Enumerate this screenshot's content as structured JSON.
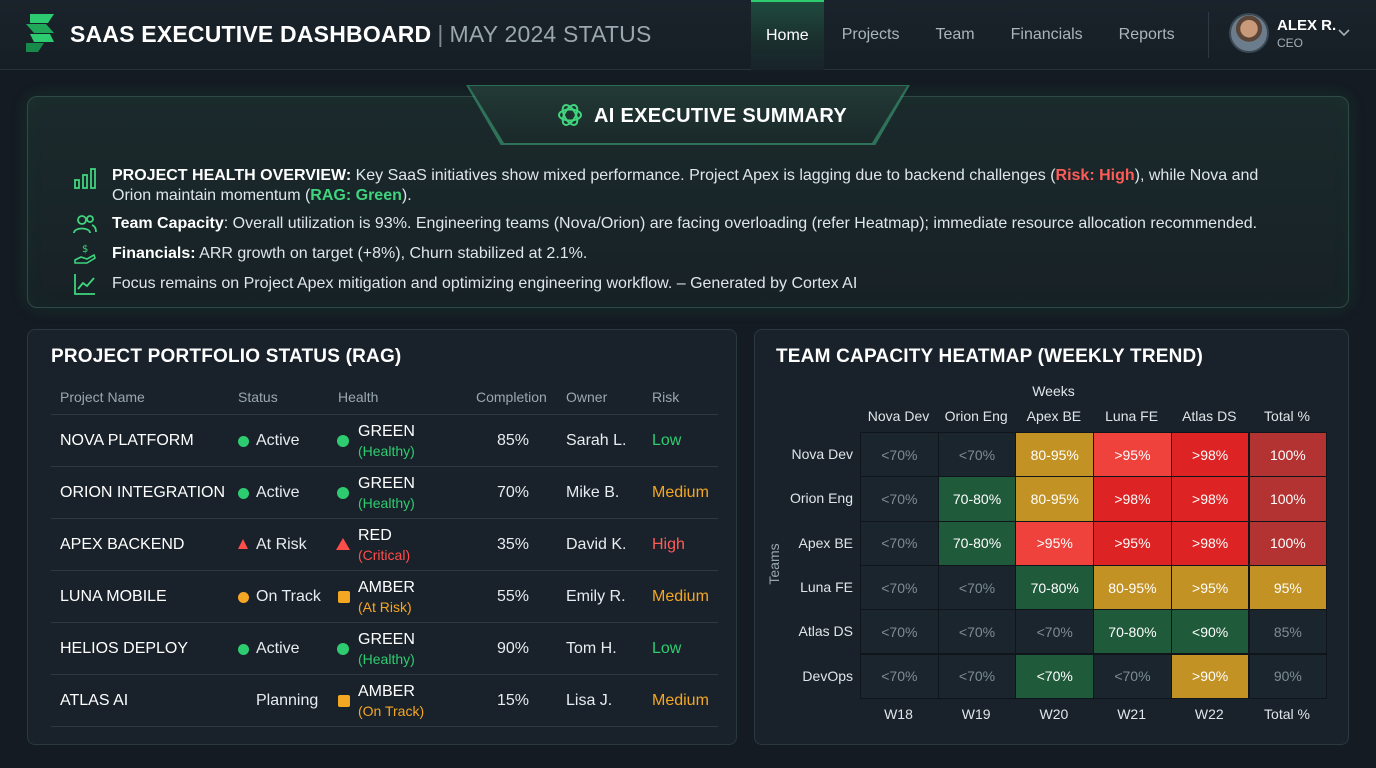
{
  "header": {
    "title_main": "SAAS EXECUTIVE DASHBOARD",
    "title_sep": "|",
    "title_sub": "MAY 2024 STATUS",
    "nav": [
      {
        "label": "Home",
        "active": true
      },
      {
        "label": "Projects",
        "active": false
      },
      {
        "label": "Team",
        "active": false
      },
      {
        "label": "Financials",
        "active": false
      },
      {
        "label": "Reports",
        "active": false
      }
    ],
    "user": {
      "name": "ALEX R.",
      "role": "CEO"
    }
  },
  "summary": {
    "title": "AI EXECUTIVE SUMMARY",
    "rows": [
      {
        "icon": "bar-chart-icon",
        "bold": "PROJECT HEALTH OVERVIEW:",
        "text1": " Key SaaS initiatives show mixed performance. Project Apex is lagging due to backend challenges (",
        "risk": "Risk: High",
        "text2": "), while Nova and",
        "line2a": "Orion maintain momentum (",
        "rag": "RAG: Green",
        "line2b": ")."
      },
      {
        "icon": "users-icon",
        "bold": "Team Capacity",
        "text": ": Overall utilization is 93%. Engineering teams (Nova/Orion) are facing overloading (refer Heatmap); immediate resource allocation recommended."
      },
      {
        "icon": "money-hand-icon",
        "bold": "Financials:",
        "text": " ARR growth on target (+8%), Churn stabilized at 2.1%."
      },
      {
        "icon": "trend-line-icon",
        "text": "Focus remains on Project Apex mitigation and optimizing engineering workflow. – Generated by Cortex AI"
      }
    ]
  },
  "portfolio": {
    "title": "PROJECT PORTFOLIO STATUS (RAG)",
    "columns": [
      "Project Name",
      "Status",
      "Health",
      "Completion",
      "Owner",
      "Risk"
    ],
    "rows": [
      {
        "name": "NOVA PLATFORM",
        "status": "Active",
        "status_marker": "dot",
        "status_color": "#2ecc71",
        "health": "GREEN",
        "health_note": "(Healthy)",
        "health_marker": "dot",
        "health_color": "#2ecc71",
        "completion": "85%",
        "owner": "Sarah L.",
        "risk": "Low",
        "risk_color": "#2ecc71"
      },
      {
        "name": "ORION INTEGRATION",
        "status": "Active",
        "status_marker": "dot",
        "status_color": "#2ecc71",
        "health": "GREEN",
        "health_note": "(Healthy)",
        "health_marker": "dot",
        "health_color": "#2ecc71",
        "completion": "70%",
        "owner": "Mike B.",
        "risk": "Medium",
        "risk_color": "#f5a623"
      },
      {
        "name": "APEX BACKEND",
        "status": "At Risk",
        "status_marker": "tri-small",
        "status_color": "#ff4d4a",
        "health": "RED",
        "health_note": "(Critical)",
        "health_marker": "tri",
        "health_color": "#ff4d4a",
        "completion": "35%",
        "owner": "David K.",
        "risk": "High",
        "risk_color": "#ff5b57"
      },
      {
        "name": "LUNA MOBILE",
        "status": "On Track",
        "status_marker": "dot",
        "status_color": "#f5a623",
        "health": "AMBER",
        "health_note": "(At Risk)",
        "health_marker": "sq",
        "health_color": "#f5a623",
        "completion": "55%",
        "owner": "Emily R.",
        "risk": "Medium",
        "risk_color": "#f5a623"
      },
      {
        "name": "HELIOS DEPLOY",
        "status": "Active",
        "status_marker": "dot",
        "status_color": "#2ecc71",
        "health": "GREEN",
        "health_note": "(Healthy)",
        "health_marker": "dot",
        "health_color": "#2ecc71",
        "completion": "90%",
        "owner": "Tom H.",
        "risk": "Low",
        "risk_color": "#2ecc71"
      },
      {
        "name": "ATLAS AI",
        "status": "Planning",
        "status_marker": "none",
        "status_color": "",
        "health": "AMBER",
        "health_note": "(On Track)",
        "health_marker": "sq",
        "health_color": "#f5a623",
        "completion": "15%",
        "owner": "Lisa J.",
        "risk": "Medium",
        "risk_color": "#f5a623"
      }
    ]
  },
  "heatmap": {
    "title": "TEAM CAPACITY HEATMAP (WEEKLY TREND)",
    "top_axis_label": "Weeks",
    "side_axis_label": "Teams",
    "top_columns": [
      "Nova Dev",
      "Orion Eng",
      "Apex BE",
      "Luna FE",
      "Atlas DS",
      "Total %"
    ],
    "bottom_columns": [
      "W18",
      "W19",
      "W20",
      "W21",
      "W22",
      "Total %"
    ],
    "rows": [
      {
        "label": "Nova Dev",
        "cells": [
          {
            "v": "<70%",
            "c": "empty"
          },
          {
            "v": "<70%",
            "c": "empty"
          },
          {
            "v": "80-95%",
            "c": "amber"
          },
          {
            "v": ">95%",
            "c": "red"
          },
          {
            "v": ">98%",
            "c": "red2"
          },
          {
            "v": "100%",
            "c": "darkred"
          }
        ]
      },
      {
        "label": "Orion Eng",
        "cells": [
          {
            "v": "<70%",
            "c": "empty"
          },
          {
            "v": "70-80%",
            "c": "green"
          },
          {
            "v": "80-95%",
            "c": "amber"
          },
          {
            "v": ">98%",
            "c": "red2"
          },
          {
            "v": ">98%",
            "c": "red2"
          },
          {
            "v": "100%",
            "c": "darkred"
          }
        ]
      },
      {
        "label": "Apex BE",
        "cells": [
          {
            "v": "<70%",
            "c": "empty"
          },
          {
            "v": "70-80%",
            "c": "green"
          },
          {
            "v": ">95%",
            "c": "red"
          },
          {
            "v": ">95%",
            "c": "red2"
          },
          {
            "v": ">98%",
            "c": "red2"
          },
          {
            "v": "100%",
            "c": "darkred"
          }
        ]
      },
      {
        "label": "Luna FE",
        "cells": [
          {
            "v": "<70%",
            "c": "empty"
          },
          {
            "v": "<70%",
            "c": "empty"
          },
          {
            "v": "70-80%",
            "c": "green"
          },
          {
            "v": "80-95%",
            "c": "amber"
          },
          {
            "v": ">95%",
            "c": "amber"
          },
          {
            "v": "95%",
            "c": "amber"
          }
        ]
      },
      {
        "label": "Atlas DS",
        "cells": [
          {
            "v": "<70%",
            "c": "empty"
          },
          {
            "v": "<70%",
            "c": "empty"
          },
          {
            "v": "<70%",
            "c": "empty"
          },
          {
            "v": "70-80%",
            "c": "green"
          },
          {
            "v": "<90%",
            "c": "green"
          },
          {
            "v": "85%",
            "c": "empty"
          }
        ]
      },
      {
        "label": "DevOps",
        "cells": [
          {
            "v": "<70%",
            "c": "empty"
          },
          {
            "v": "<70%",
            "c": "empty"
          },
          {
            "v": "<70%",
            "c": "green"
          },
          {
            "v": "<70%",
            "c": "empty"
          },
          {
            "v": ">90%",
            "c": "amber"
          },
          {
            "v": "90%",
            "c": "empty"
          }
        ]
      }
    ],
    "colors": {
      "empty": {
        "bg": "#1b252d",
        "fg": "#7f8c94"
      },
      "green": {
        "bg": "#1f5a3a",
        "fg": "#ffffff"
      },
      "amber": {
        "bg": "#c39224",
        "fg": "#ffffff"
      },
      "red": {
        "bg": "#f0423c",
        "fg": "#ffffff"
      },
      "red2": {
        "bg": "#dd2323",
        "fg": "#ffffff"
      },
      "darkred": {
        "bg": "#b33232",
        "fg": "#ffffff"
      }
    }
  }
}
